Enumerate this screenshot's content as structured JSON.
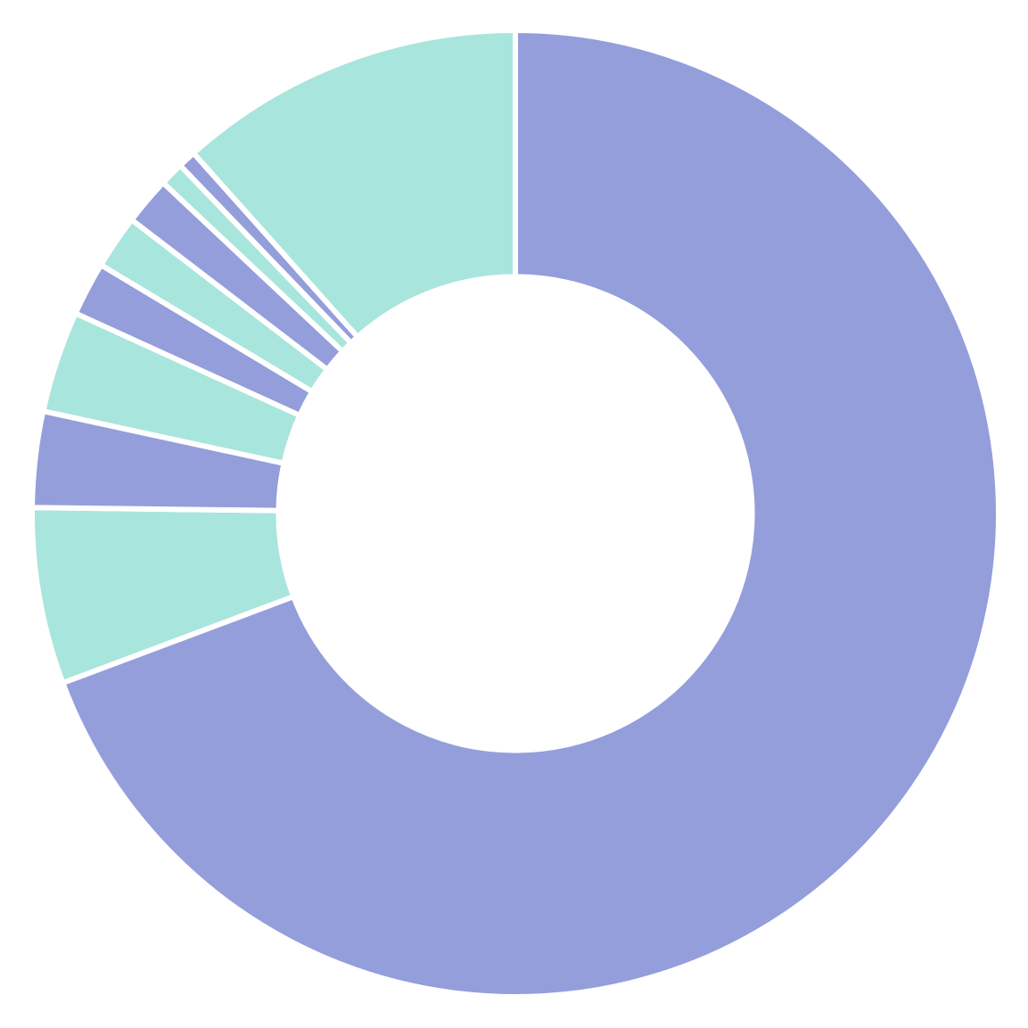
{
  "colors": {
    "background": "#ffffff",
    "slice_primary": "#949EDB",
    "slice_secondary": "#A8E5DD",
    "separator": "#ffffff"
  },
  "chart_data": {
    "type": "pie",
    "variant": "donut",
    "title": "",
    "legend": "none",
    "data_labels": "none",
    "start_angle_deg": 0,
    "direction": "clockwise",
    "hole_ratio": 0.49,
    "values": [
      69.3,
      5.9,
      3.2,
      3.4,
      1.8,
      1.8,
      1.6,
      0.8,
      0.6,
      11.6
    ],
    "colors": [
      "#949EDB",
      "#A8E5DD",
      "#949EDB",
      "#A8E5DD",
      "#949EDB",
      "#A8E5DD",
      "#949EDB",
      "#A8E5DD",
      "#949EDB",
      "#A8E5DD"
    ]
  }
}
